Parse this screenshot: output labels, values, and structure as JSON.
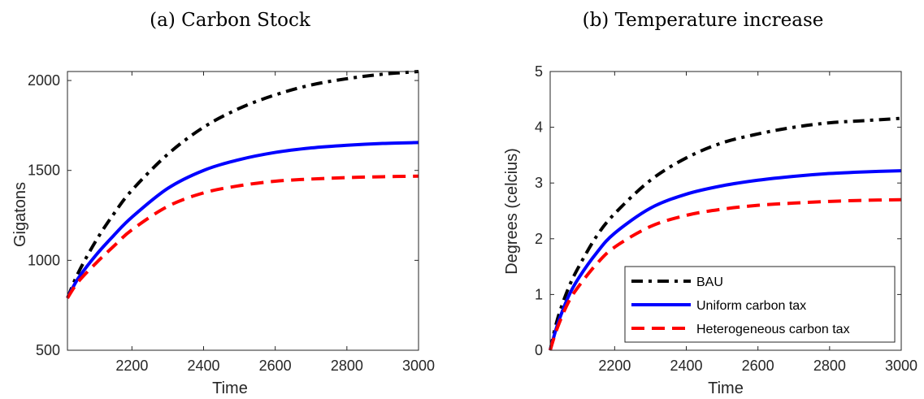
{
  "chart_data": [
    {
      "type": "line",
      "title": "(a) Carbon Stock",
      "xlabel": "Time",
      "ylabel": "Gigatons",
      "xlim": [
        2020,
        3000
      ],
      "ylim": [
        500,
        2050
      ],
      "xticks": [
        2200,
        2400,
        2600,
        2800,
        3000
      ],
      "yticks": [
        500,
        1000,
        1500,
        2000
      ],
      "grid": false,
      "series": [
        {
          "name": "BAU",
          "color": "#000000",
          "dash": "dashdot",
          "x": [
            2020,
            2050,
            2100,
            2150,
            2200,
            2300,
            2400,
            2500,
            2600,
            2700,
            2800,
            2900,
            3000
          ],
          "y": [
            790,
            930,
            1110,
            1260,
            1390,
            1590,
            1740,
            1845,
            1920,
            1975,
            2010,
            2035,
            2050
          ]
        },
        {
          "name": "Uniform carbon tax",
          "color": "#0000ff",
          "dash": "solid",
          "x": [
            2020,
            2050,
            2100,
            2150,
            2200,
            2300,
            2400,
            2500,
            2600,
            2700,
            2800,
            2900,
            3000
          ],
          "y": [
            790,
            900,
            1030,
            1140,
            1240,
            1400,
            1500,
            1560,
            1600,
            1625,
            1640,
            1650,
            1655
          ]
        },
        {
          "name": "Heterogeneous carbon tax",
          "color": "#ff0000",
          "dash": "dashed",
          "x": [
            2020,
            2050,
            2100,
            2150,
            2200,
            2300,
            2400,
            2500,
            2600,
            2700,
            2800,
            2900,
            3000
          ],
          "y": [
            790,
            880,
            985,
            1080,
            1170,
            1300,
            1375,
            1415,
            1440,
            1452,
            1460,
            1465,
            1468
          ]
        }
      ]
    },
    {
      "type": "line",
      "title": "(b) Temperature increase",
      "xlabel": "Time",
      "ylabel": "Degrees (celcius)",
      "xlim": [
        2020,
        3000
      ],
      "ylim": [
        0,
        5
      ],
      "xticks": [
        2200,
        2400,
        2600,
        2800,
        3000
      ],
      "yticks": [
        0,
        1,
        2,
        3,
        4,
        5
      ],
      "grid": false,
      "legend": "bottom-right",
      "series": [
        {
          "name": "BAU",
          "color": "#000000",
          "dash": "dashdot",
          "x": [
            2020,
            2040,
            2070,
            2100,
            2150,
            2200,
            2300,
            2400,
            2500,
            2600,
            2700,
            2800,
            2900,
            3000
          ],
          "y": [
            0,
            0.55,
            1.1,
            1.5,
            2.05,
            2.45,
            3.05,
            3.45,
            3.72,
            3.88,
            4.0,
            4.08,
            4.12,
            4.16
          ]
        },
        {
          "name": "Uniform carbon tax",
          "color": "#0000ff",
          "dash": "solid",
          "x": [
            2020,
            2040,
            2070,
            2100,
            2150,
            2200,
            2300,
            2400,
            2500,
            2600,
            2700,
            2800,
            2900,
            3000
          ],
          "y": [
            0,
            0.45,
            0.95,
            1.3,
            1.75,
            2.1,
            2.55,
            2.8,
            2.95,
            3.05,
            3.12,
            3.17,
            3.2,
            3.22
          ]
        },
        {
          "name": "Heterogeneous carbon tax",
          "color": "#ff0000",
          "dash": "dashed",
          "x": [
            2020,
            2040,
            2070,
            2100,
            2150,
            2200,
            2300,
            2400,
            2500,
            2600,
            2700,
            2800,
            2900,
            3000
          ],
          "y": [
            0,
            0.4,
            0.85,
            1.15,
            1.55,
            1.85,
            2.22,
            2.42,
            2.53,
            2.6,
            2.64,
            2.67,
            2.69,
            2.7
          ]
        }
      ]
    }
  ]
}
